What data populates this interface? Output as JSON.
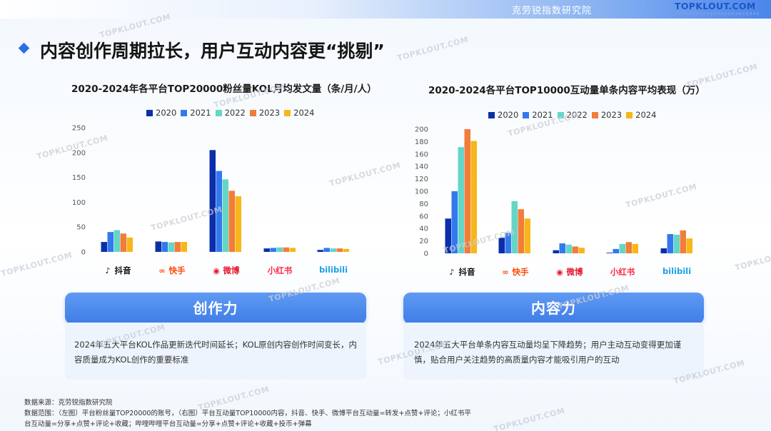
{
  "header": {
    "org": "克劳锐指数研究院",
    "brand": "TOPKLOUT.COM"
  },
  "page_title": "内容创作周期拉长，用户互动内容更“挑剔”",
  "watermark": "TOPKLOUT.COM",
  "colors": {
    "2020": "#0b2fa8",
    "2021": "#3478ee",
    "2022": "#63d6c8",
    "2023": "#f07d3a",
    "2024": "#f7b619",
    "accent": "#3f7de6"
  },
  "platforms": [
    {
      "name": "抖音",
      "icon": "douyin-icon"
    },
    {
      "name": "快手",
      "icon": "kuaishou-icon"
    },
    {
      "name": "微博",
      "icon": "weibo-icon"
    },
    {
      "name": "小红书",
      "icon": "xiaohongshu-icon"
    },
    {
      "name": "bilibili",
      "icon": "bilibili-icon"
    }
  ],
  "chart_data": [
    {
      "type": "bar",
      "title": "2020-2024年各平台TOP20000粉丝量KOL月均发文量（条/月/人）",
      "categories": [
        "抖音",
        "快手",
        "微博",
        "小红书",
        "bilibili"
      ],
      "series": [
        {
          "name": "2020",
          "values": [
            20,
            21,
            205,
            7,
            4
          ]
        },
        {
          "name": "2021",
          "values": [
            40,
            20,
            163,
            8,
            8
          ]
        },
        {
          "name": "2022",
          "values": [
            44,
            19,
            146,
            9,
            7
          ]
        },
        {
          "name": "2023",
          "values": [
            37,
            20,
            123,
            9,
            7
          ]
        },
        {
          "name": "2024",
          "values": [
            29,
            20,
            112,
            8,
            6
          ]
        }
      ],
      "yticks": [
        0,
        50,
        100,
        150,
        200,
        250
      ],
      "ylim": [
        0,
        250
      ],
      "legend": "top",
      "grid": false
    },
    {
      "type": "bar",
      "title": "2020-2024各平台TOP10000互动量单条内容平均表现（万）",
      "categories": [
        "抖音",
        "快手",
        "微博",
        "小红书",
        "bilibili"
      ],
      "series": [
        {
          "name": "2020",
          "values": [
            56,
            25,
            5,
            1,
            8
          ]
        },
        {
          "name": "2021",
          "values": [
            100,
            33,
            16,
            7,
            31
          ]
        },
        {
          "name": "2022",
          "values": [
            171,
            84,
            14,
            15,
            30
          ]
        },
        {
          "name": "2023",
          "values": [
            200,
            71,
            11,
            18,
            37
          ]
        },
        {
          "name": "2024",
          "values": [
            181,
            56,
            9,
            15,
            24
          ]
        }
      ],
      "yticks": [
        0,
        20,
        40,
        60,
        80,
        100,
        120,
        140,
        160,
        180,
        200
      ],
      "ylim": [
        0,
        200
      ],
      "legend": "top",
      "grid": false
    }
  ],
  "cards": {
    "left": {
      "title": "创作力",
      "text": "2024年五大平台KOL作品更新迭代时间延长；KOL原创内容创作时间变长，内容质量成为KOL创作的重要标准"
    },
    "right": {
      "title": "内容力",
      "text": "2024年五大平台单条内容互动量均呈下降趋势；用户主动互动变得更加谨慎，贴合用户关注趋势的高质量内容才能吸引用户的互动"
    }
  },
  "footnotes": {
    "source": "数据来源：克劳锐指数研究院",
    "scope_1": "数据范围：（左图）平台粉丝量TOP20000的账号，（右图）平台互动量TOP10000内容，抖音、快手、微博平台互动量=转发+点赞+评论；小红书平",
    "scope_2": "台互动量=分享+点赞+评论+收藏；哔哩哔哩平台互动量=分享+点赞+评论+收藏+投币+弹幕"
  }
}
